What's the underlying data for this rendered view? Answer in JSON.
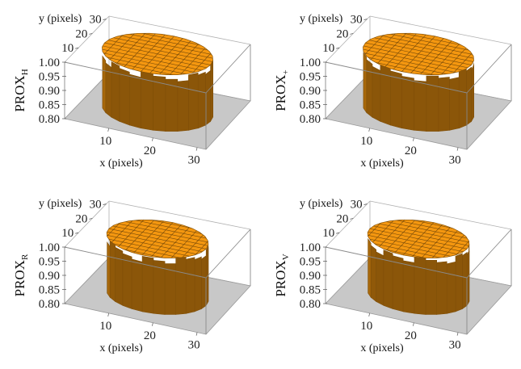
{
  "figure": {
    "panels": [
      {
        "zlabel": "PROX",
        "zsub": "H",
        "xlabel": "x (pixels)",
        "ylabel": "y (pixels)"
      },
      {
        "zlabel": "PROX",
        "zsub": "+",
        "xlabel": "x (pixels)",
        "ylabel": "y (pixels)"
      },
      {
        "zlabel": "PROX",
        "zsub": "R",
        "xlabel": "x (pixels)",
        "ylabel": "y (pixels)"
      },
      {
        "zlabel": "PROX",
        "zsub": "V",
        "xlabel": "x (pixels)",
        "ylabel": "y (pixels)"
      }
    ]
  },
  "chart_data": [
    {
      "type": "surface",
      "z_label": "PROX_H",
      "xlabel": "x (pixels)",
      "ylabel": "y (pixels)",
      "x_ticks": [
        10,
        20,
        30
      ],
      "y_ticks": [
        10,
        20,
        30
      ],
      "z_ticks": [
        0.8,
        0.85,
        0.9,
        0.95,
        1.0
      ],
      "xlim": [
        0,
        32
      ],
      "ylim": [
        0,
        32
      ],
      "zlim": [
        0.8,
        1.0
      ],
      "surface_color": "#e8900f",
      "floor_color": "#c8c8c8",
      "shape": {
        "center": [
          16,
          16
        ],
        "radius": 12,
        "plateau_z": 1.0,
        "floor_z": 0.8
      }
    },
    {
      "type": "surface",
      "z_label": "PROX_+",
      "xlabel": "x (pixels)",
      "ylabel": "y (pixels)",
      "x_ticks": [
        10,
        20,
        30
      ],
      "y_ticks": [
        10,
        20,
        30
      ],
      "z_ticks": [
        0.8,
        0.85,
        0.9,
        0.95,
        1.0
      ],
      "xlim": [
        0,
        32
      ],
      "ylim": [
        0,
        32
      ],
      "zlim": [
        0.8,
        1.0
      ],
      "surface_color": "#e8900f",
      "floor_color": "#c8c8c8",
      "shape": {
        "center": [
          16,
          16
        ],
        "radius": 12,
        "plateau_z": 1.0,
        "floor_z": 0.8
      }
    },
    {
      "type": "surface",
      "z_label": "PROX_R",
      "xlabel": "x (pixels)",
      "ylabel": "y (pixels)",
      "x_ticks": [
        10,
        20,
        30
      ],
      "y_ticks": [
        10,
        20,
        30
      ],
      "z_ticks": [
        0.8,
        0.85,
        0.9,
        0.95,
        1.0
      ],
      "xlim": [
        0,
        32
      ],
      "ylim": [
        0,
        32
      ],
      "zlim": [
        0.8,
        1.0
      ],
      "surface_color": "#e8900f",
      "floor_color": "#c8c8c8",
      "shape": {
        "center": [
          16,
          16
        ],
        "radius": 11,
        "plateau_z": 1.0,
        "floor_z": 0.8
      }
    },
    {
      "type": "surface",
      "z_label": "PROX_V",
      "xlabel": "x (pixels)",
      "ylabel": "y (pixels)",
      "x_ticks": [
        10,
        20,
        30
      ],
      "y_ticks": [
        10,
        20,
        30
      ],
      "z_ticks": [
        0.8,
        0.85,
        0.9,
        0.95,
        1.0
      ],
      "xlim": [
        0,
        32
      ],
      "ylim": [
        0,
        32
      ],
      "zlim": [
        0.8,
        1.0
      ],
      "surface_color": "#e8900f",
      "floor_color": "#c8c8c8",
      "shape": {
        "center": [
          16,
          16
        ],
        "radius": 11,
        "plateau_z": 1.0,
        "floor_z": 0.8
      }
    }
  ]
}
